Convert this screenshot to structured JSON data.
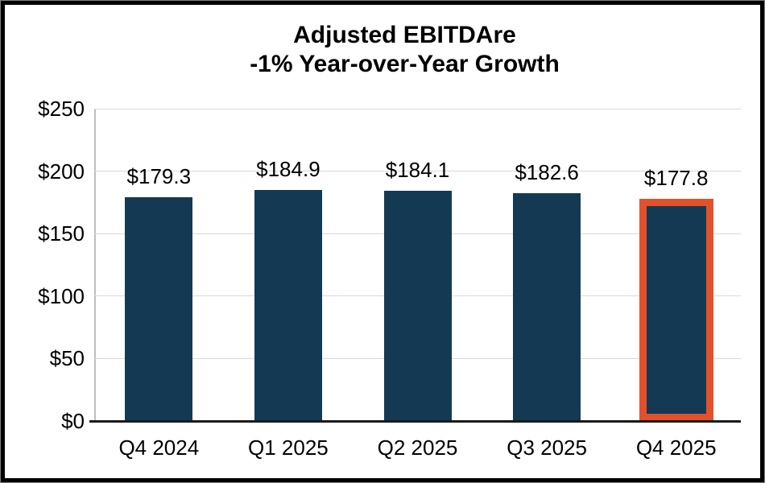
{
  "chart_data": {
    "type": "bar",
    "title_lines": [
      "Adjusted EBITDAre",
      "-1% Year-over-Year Growth"
    ],
    "categories": [
      "Q4 2024",
      "Q1 2025",
      "Q2 2025",
      "Q3 2025",
      "Q4 2025"
    ],
    "values": [
      179.3,
      184.9,
      184.1,
      182.6,
      177.8
    ],
    "value_labels": [
      "$179.3",
      "$184.9",
      "$184.1",
      "$182.6",
      "$177.8"
    ],
    "ylim": [
      0,
      250
    ],
    "ytick_step": 50,
    "ytick_labels": [
      "$0",
      "$50",
      "$100",
      "$150",
      "$200",
      "$250"
    ],
    "highlight_index": 4,
    "grid": true,
    "legend": "none",
    "colors": {
      "bar": "#143A53",
      "highlight_border": "#E2512C",
      "gridline": "#D9D9D9",
      "y_axis_line": "#BFBFBF",
      "x_axis_line": "#1A1A1A",
      "text": "#000000",
      "background": "#FFFFFF",
      "frame_border": "#000000"
    }
  }
}
